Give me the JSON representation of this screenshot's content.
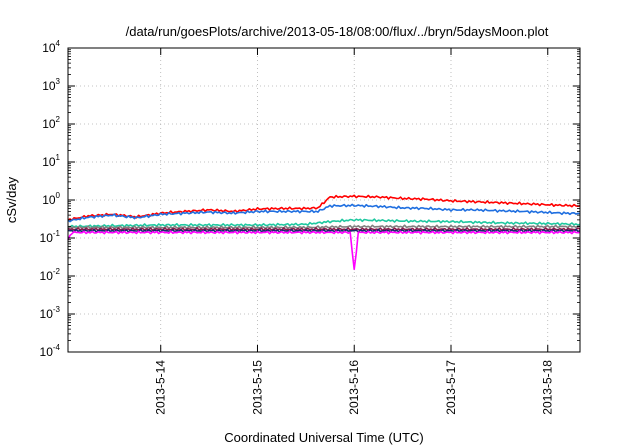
{
  "chart_data": {
    "type": "line",
    "title": "/data/run/goesPlots/archive/2013-05-18/08:00/flux/../bryn/5daysMoon.plot",
    "xlabel": "Coordinated Universal Time (UTC)",
    "ylabel": "cSv/day",
    "yscale": "log",
    "ylim": [
      0.0001,
      10000
    ],
    "y_ticks": [
      {
        "base": "10",
        "exp": "-4",
        "value": 0.0001
      },
      {
        "base": "10",
        "exp": "-3",
        "value": 0.001
      },
      {
        "base": "10",
        "exp": "-2",
        "value": 0.01
      },
      {
        "base": "10",
        "exp": "-1",
        "value": 0.1
      },
      {
        "base": "10",
        "exp": "0",
        "value": 1
      },
      {
        "base": "10",
        "exp": "1",
        "value": 10
      },
      {
        "base": "10",
        "exp": "2",
        "value": 100
      },
      {
        "base": "10",
        "exp": "3",
        "value": 1000
      },
      {
        "base": "10",
        "exp": "4",
        "value": 10000
      }
    ],
    "xlim": [
      "2013-05-13 01:00",
      "2013-05-18 08:00"
    ],
    "x_ticks": [
      "2013-5-14",
      "2013-5-15",
      "2013-5-16",
      "2013-5-17",
      "2013-5-18"
    ],
    "grid": true,
    "series": [
      {
        "color": "#ff0000",
        "x": [
          "2013-05-13 01:00",
          "2013-05-13 06:00",
          "2013-05-13 12:00",
          "2013-05-13 18:00",
          "2013-05-14 00:00",
          "2013-05-14 06:00",
          "2013-05-14 12:00",
          "2013-05-14 18:00",
          "2013-05-15 00:00",
          "2013-05-15 06:00",
          "2013-05-15 12:00",
          "2013-05-15 15:00",
          "2013-05-15 18:00",
          "2013-05-16 00:00",
          "2013-05-16 06:00",
          "2013-05-16 12:00",
          "2013-05-16 18:00",
          "2013-05-17 00:00",
          "2013-05-17 06:00",
          "2013-05-17 12:00",
          "2013-05-17 18:00",
          "2013-05-18 00:00",
          "2013-05-18 04:00",
          "2013-05-18 08:00"
        ],
        "values": [
          0.3,
          0.38,
          0.42,
          0.36,
          0.45,
          0.5,
          0.55,
          0.5,
          0.58,
          0.6,
          0.6,
          0.62,
          1.2,
          1.25,
          1.2,
          1.1,
          1.05,
          0.95,
          0.9,
          0.85,
          0.8,
          0.75,
          0.72,
          0.7
        ]
      },
      {
        "color": "#1f6fe0",
        "x": [
          "2013-05-13 01:00",
          "2013-05-13 06:00",
          "2013-05-13 12:00",
          "2013-05-13 18:00",
          "2013-05-14 00:00",
          "2013-05-14 06:00",
          "2013-05-14 12:00",
          "2013-05-14 18:00",
          "2013-05-15 00:00",
          "2013-05-15 06:00",
          "2013-05-15 12:00",
          "2013-05-15 15:00",
          "2013-05-15 18:00",
          "2013-05-16 00:00",
          "2013-05-16 06:00",
          "2013-05-16 12:00",
          "2013-05-16 18:00",
          "2013-05-17 00:00",
          "2013-05-17 06:00",
          "2013-05-17 12:00",
          "2013-05-17 18:00",
          "2013-05-18 00:00",
          "2013-05-18 04:00",
          "2013-05-18 08:00"
        ],
        "values": [
          0.28,
          0.35,
          0.4,
          0.34,
          0.42,
          0.45,
          0.48,
          0.45,
          0.5,
          0.5,
          0.5,
          0.5,
          0.7,
          0.72,
          0.68,
          0.62,
          0.6,
          0.55,
          0.55,
          0.52,
          0.5,
          0.47,
          0.45,
          0.44
        ]
      },
      {
        "color": "#1fc8a0",
        "x": [
          "2013-05-13 01:00",
          "2013-05-13 12:00",
          "2013-05-14 00:00",
          "2013-05-14 12:00",
          "2013-05-15 00:00",
          "2013-05-15 12:00",
          "2013-05-15 18:00",
          "2013-05-16 00:00",
          "2013-05-16 12:00",
          "2013-05-17 00:00",
          "2013-05-17 12:00",
          "2013-05-18 00:00",
          "2013-05-18 08:00"
        ],
        "values": [
          0.2,
          0.21,
          0.22,
          0.22,
          0.22,
          0.23,
          0.27,
          0.3,
          0.28,
          0.27,
          0.25,
          0.24,
          0.23
        ]
      },
      {
        "color": "#808080",
        "x": [
          "2013-05-13 01:00",
          "2013-05-13 12:00",
          "2013-05-14 00:00",
          "2013-05-14 12:00",
          "2013-05-15 00:00",
          "2013-05-15 12:00",
          "2013-05-16 00:00",
          "2013-05-16 12:00",
          "2013-05-17 00:00",
          "2013-05-17 12:00",
          "2013-05-18 00:00",
          "2013-05-18 08:00"
        ],
        "values": [
          0.19,
          0.19,
          0.19,
          0.19,
          0.19,
          0.19,
          0.2,
          0.2,
          0.2,
          0.2,
          0.2,
          0.2
        ]
      },
      {
        "color": "#8b1a4a",
        "x": [
          "2013-05-13 01:00",
          "2013-05-13 12:00",
          "2013-05-14 00:00",
          "2013-05-14 12:00",
          "2013-05-15 00:00",
          "2013-05-15 12:00",
          "2013-05-16 00:00",
          "2013-05-16 12:00",
          "2013-05-17 00:00",
          "2013-05-17 12:00",
          "2013-05-18 00:00",
          "2013-05-18 08:00"
        ],
        "values": [
          0.17,
          0.17,
          0.17,
          0.17,
          0.17,
          0.17,
          0.17,
          0.17,
          0.17,
          0.17,
          0.17,
          0.17
        ]
      },
      {
        "color": "#1a2a6c",
        "x": [
          "2013-05-13 01:00",
          "2013-05-13 12:00",
          "2013-05-14 00:00",
          "2013-05-14 12:00",
          "2013-05-15 00:00",
          "2013-05-15 12:00",
          "2013-05-16 00:00",
          "2013-05-16 12:00",
          "2013-05-17 00:00",
          "2013-05-17 12:00",
          "2013-05-18 00:00",
          "2013-05-18 08:00"
        ],
        "values": [
          0.155,
          0.155,
          0.155,
          0.155,
          0.155,
          0.155,
          0.155,
          0.155,
          0.155,
          0.155,
          0.155,
          0.155
        ]
      },
      {
        "color": "#ff00ff",
        "x": [
          "2013-05-13 01:00",
          "2013-05-13 02:00",
          "2013-05-13 12:00",
          "2013-05-14 00:00",
          "2013-05-14 12:00",
          "2013-05-15 00:00",
          "2013-05-15 12:00",
          "2013-05-15 23:00",
          "2013-05-16 00:00",
          "2013-05-16 01:00",
          "2013-05-16 12:00",
          "2013-05-17 00:00",
          "2013-05-17 12:00",
          "2013-05-18 00:00",
          "2013-05-18 08:00"
        ],
        "values": [
          0.09,
          0.14,
          0.14,
          0.14,
          0.14,
          0.14,
          0.14,
          0.14,
          0.014,
          0.14,
          0.14,
          0.14,
          0.14,
          0.14,
          0.14
        ]
      }
    ]
  }
}
